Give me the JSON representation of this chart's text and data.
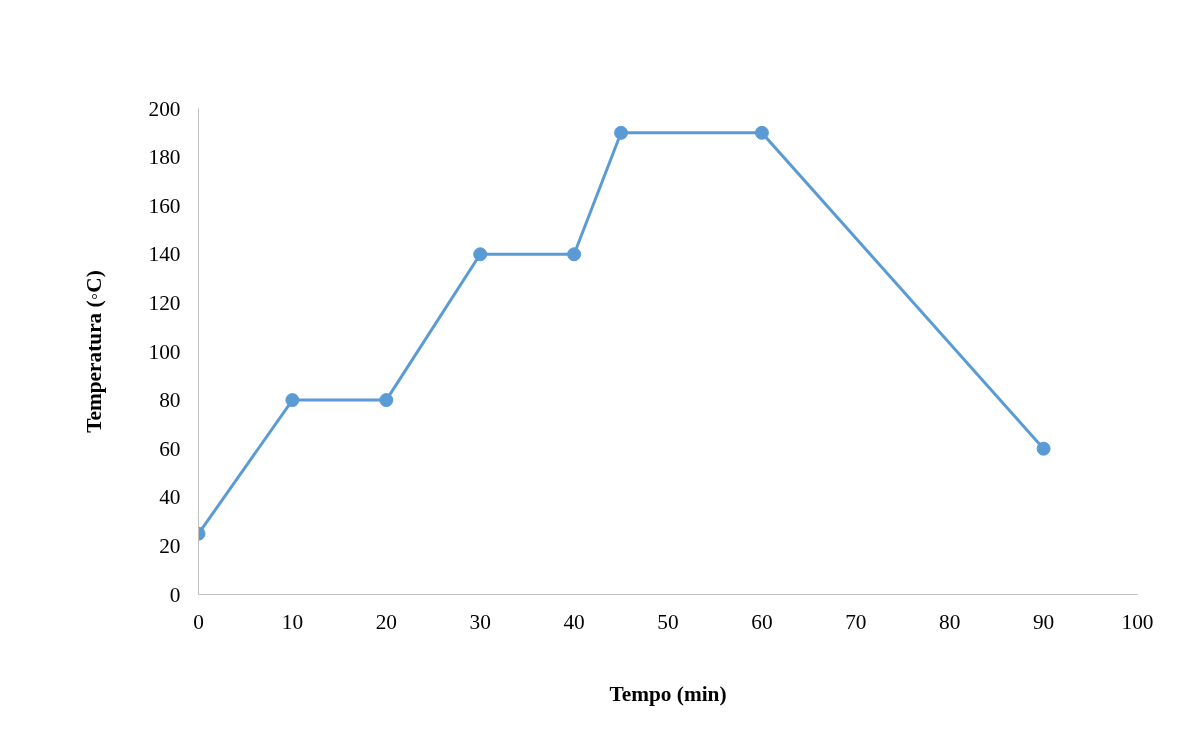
{
  "chart_data": {
    "type": "line",
    "xlabel": "Tempo (min)",
    "ylabel": "Temperatura (◦C)",
    "x": [
      0,
      10,
      20,
      30,
      40,
      45,
      60,
      90
    ],
    "series": [
      {
        "color": "#5b9bd5",
        "values": [
          25,
          80,
          80,
          140,
          140,
          190,
          190,
          60
        ]
      }
    ],
    "xlim": [
      0,
      100
    ],
    "ylim": [
      0,
      200
    ],
    "xticks": [
      0,
      10,
      20,
      30,
      40,
      50,
      60,
      70,
      80,
      90,
      100
    ],
    "yticks": [
      0,
      20,
      40,
      60,
      80,
      100,
      120,
      140,
      160,
      180,
      200
    ],
    "grid": false,
    "marker": "circle",
    "line_style": "solid"
  }
}
